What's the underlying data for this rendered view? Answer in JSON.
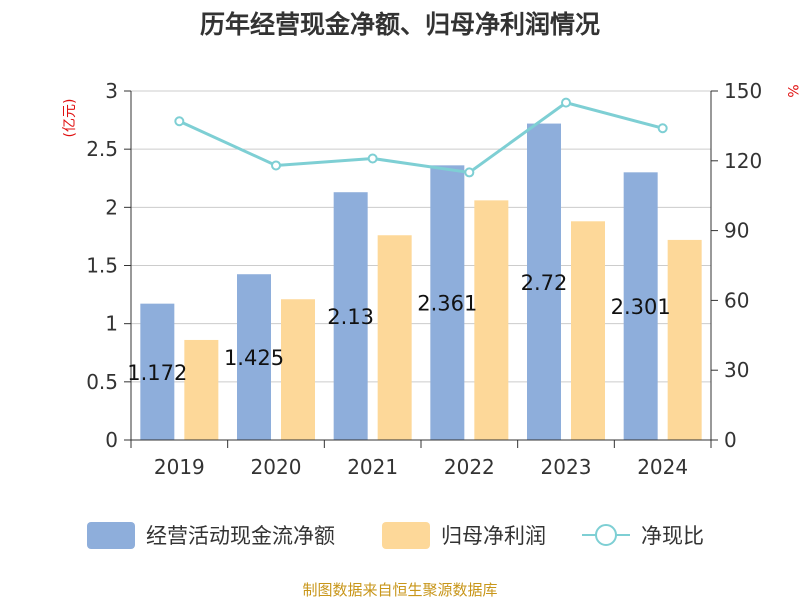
{
  "title": "历年经营现金净额、归母净利润情况",
  "source": "制图数据来自恒生聚源数据库",
  "left_unit": "(亿元)",
  "right_unit": "%",
  "colors": {
    "bar1": "#8eaedb",
    "bar2": "#fdd899",
    "line": "#7ecfd4",
    "unit": "#e01010",
    "source": "#c8961a"
  },
  "chart_data": {
    "type": "bar",
    "categories": [
      "2019",
      "2020",
      "2021",
      "2022",
      "2023",
      "2024"
    ],
    "series": [
      {
        "name": "经营活动现金流净额",
        "type": "bar",
        "axis": "left",
        "values": [
          1.172,
          1.425,
          2.13,
          2.361,
          2.72,
          2.301
        ],
        "labels": [
          "1.172",
          "1.425",
          "2.13",
          "2.361",
          "2.72",
          "2.301"
        ]
      },
      {
        "name": "归母净利润",
        "type": "bar",
        "axis": "left",
        "values": [
          0.86,
          1.21,
          1.76,
          2.06,
          1.88,
          1.72
        ]
      },
      {
        "name": "净现比",
        "type": "line",
        "axis": "right",
        "values": [
          137,
          118,
          121,
          115,
          145,
          134
        ]
      }
    ],
    "left_axis": {
      "min": 0,
      "max": 3,
      "ticks": [
        "0",
        "0.5",
        "1",
        "1.5",
        "2",
        "2.5",
        "3"
      ]
    },
    "right_axis": {
      "min": 0,
      "max": 150,
      "ticks": [
        "0",
        "30",
        "60",
        "90",
        "120",
        "150"
      ]
    },
    "grid": true,
    "legend_position": "bottom"
  }
}
